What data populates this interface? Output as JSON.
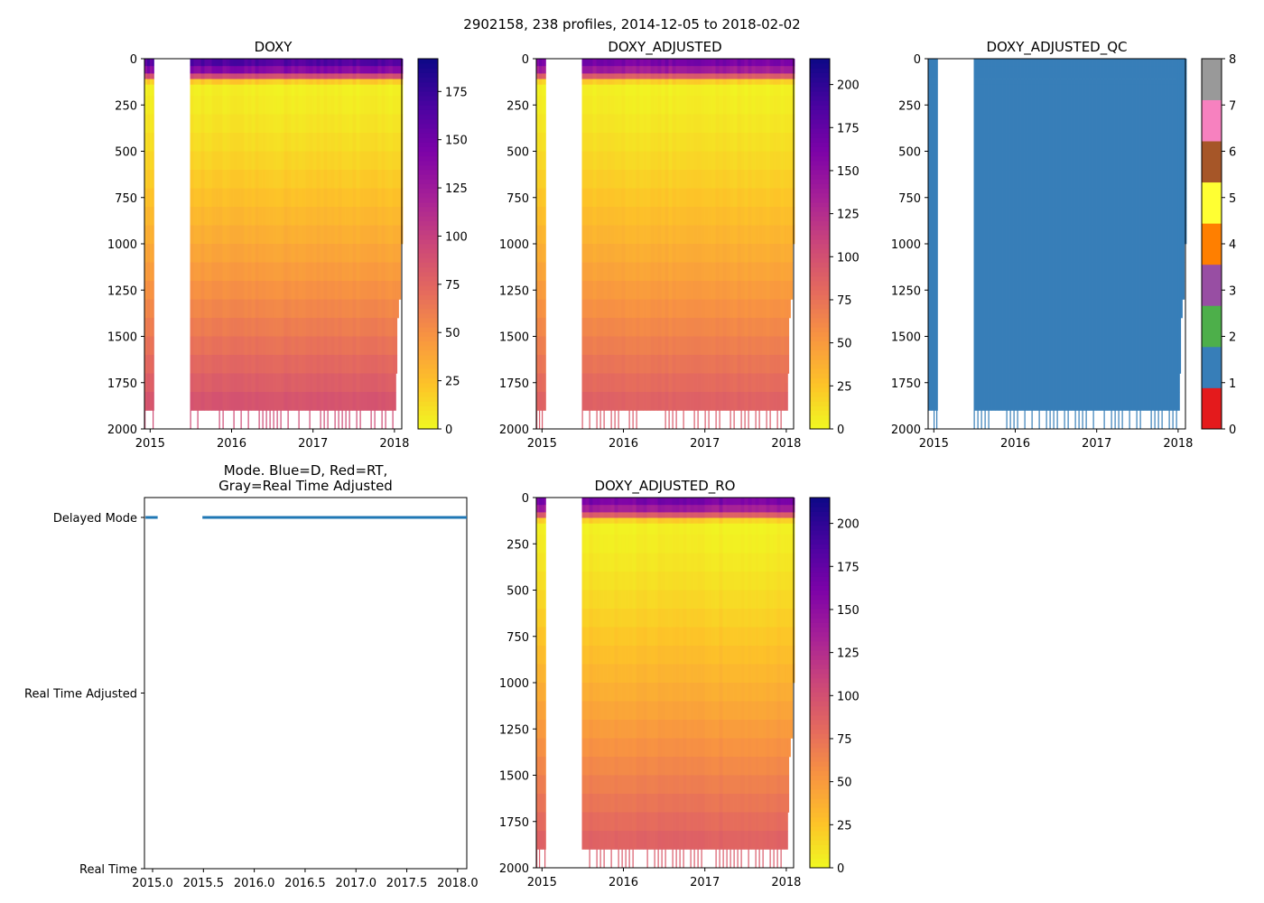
{
  "figure": {
    "suptitle": "2902158, 238 profiles, 2014-12-05 to 2018-02-02"
  },
  "chart_data": [
    {
      "id": "doxy",
      "type": "heatmap",
      "title": "DOXY",
      "x_range": [
        2014.93,
        2018.09
      ],
      "y_range": [
        2000,
        0
      ],
      "xticks": [
        {
          "v": 2015.0,
          "label": "2015"
        },
        {
          "v": 2016.0,
          "label": "2016"
        },
        {
          "v": 2017.0,
          "label": "2017"
        },
        {
          "v": 2018.0,
          "label": "2018"
        }
      ],
      "yticks": [
        0,
        250,
        500,
        750,
        1000,
        1250,
        1500,
        1750,
        2000
      ],
      "colormap": "plasma_r",
      "colorbar": {
        "min": 0,
        "max": 192,
        "ticks": [
          0,
          25,
          50,
          75,
          100,
          125,
          150,
          175
        ]
      },
      "profile_gap": [
        2015.05,
        2015.49
      ]
    },
    {
      "id": "doxy_adjusted",
      "type": "heatmap",
      "title": "DOXY_ADJUSTED",
      "x_range": [
        2014.93,
        2018.09
      ],
      "y_range": [
        2000,
        0
      ],
      "xticks": [
        {
          "v": 2015.0,
          "label": "2015"
        },
        {
          "v": 2016.0,
          "label": "2016"
        },
        {
          "v": 2017.0,
          "label": "2017"
        },
        {
          "v": 2018.0,
          "label": "2018"
        }
      ],
      "yticks": [
        0,
        250,
        500,
        750,
        1000,
        1250,
        1500,
        1750,
        2000
      ],
      "colormap": "plasma_r",
      "colorbar": {
        "min": 0,
        "max": 215,
        "ticks": [
          0,
          25,
          50,
          75,
          100,
          125,
          150,
          175,
          200
        ]
      },
      "profile_gap": [
        2015.05,
        2015.49
      ]
    },
    {
      "id": "doxy_adjusted_qc",
      "type": "heatmap",
      "title": "DOXY_ADJUSTED_QC",
      "x_range": [
        2014.93,
        2018.09
      ],
      "y_range": [
        2000,
        0
      ],
      "xticks": [
        {
          "v": 2015.0,
          "label": "2015"
        },
        {
          "v": 2016.0,
          "label": "2016"
        },
        {
          "v": 2017.0,
          "label": "2017"
        },
        {
          "v": 2018.0,
          "label": "2018"
        }
      ],
      "yticks": [
        0,
        250,
        500,
        750,
        1000,
        1250,
        1500,
        1750,
        2000
      ],
      "colormap": "qc_flags",
      "qc_value": 1,
      "colorbar": {
        "min": 0,
        "max": 8,
        "ticks": [
          0,
          1,
          2,
          3,
          4,
          5,
          6,
          7,
          8
        ],
        "colors": [
          "#e41a1c",
          "#377eb8",
          "#4daf4a",
          "#984ea3",
          "#ff7f00",
          "#ffff33",
          "#a65628",
          "#f781bf",
          "#999999"
        ]
      },
      "profile_gap": [
        2015.05,
        2015.49
      ]
    },
    {
      "id": "mode",
      "type": "scatter",
      "title_lines": [
        "Mode. Blue=D, Red=RT,",
        "Gray=Real Time Adjusted"
      ],
      "x_range": [
        2014.92,
        2018.09
      ],
      "xticks": [
        {
          "v": 2015.0,
          "label": "2015.0"
        },
        {
          "v": 2015.5,
          "label": "2015.5"
        },
        {
          "v": 2016.0,
          "label": "2016.0"
        },
        {
          "v": 2016.5,
          "label": "2016.5"
        },
        {
          "v": 2017.0,
          "label": "2017.0"
        },
        {
          "v": 2017.5,
          "label": "2017.5"
        },
        {
          "v": 2018.0,
          "label": "2018.0"
        }
      ],
      "ycats": [
        "Real Time",
        "Real Time Adjusted",
        "Delayed Mode"
      ],
      "series": [
        {
          "name": "Delayed Mode",
          "color": "#1f77b4",
          "category": "Delayed Mode",
          "segments": [
            [
              2014.93,
              2015.05
            ],
            [
              2015.49,
              2018.09
            ]
          ]
        }
      ]
    },
    {
      "id": "doxy_adjusted_ro",
      "type": "heatmap",
      "title": "DOXY_ADJUSTED_RO",
      "x_range": [
        2014.93,
        2018.09
      ],
      "y_range": [
        2000,
        0
      ],
      "xticks": [
        {
          "v": 2015.0,
          "label": "2015"
        },
        {
          "v": 2016.0,
          "label": "2016"
        },
        {
          "v": 2017.0,
          "label": "2017"
        },
        {
          "v": 2018.0,
          "label": "2018"
        }
      ],
      "yticks": [
        0,
        250,
        500,
        750,
        1000,
        1250,
        1500,
        1750,
        2000
      ],
      "colormap": "plasma_r",
      "colorbar": {
        "min": 0,
        "max": 215,
        "ticks": [
          0,
          25,
          50,
          75,
          100,
          125,
          150,
          175,
          200
        ]
      },
      "profile_gap": [
        2015.05,
        2015.49
      ]
    }
  ]
}
